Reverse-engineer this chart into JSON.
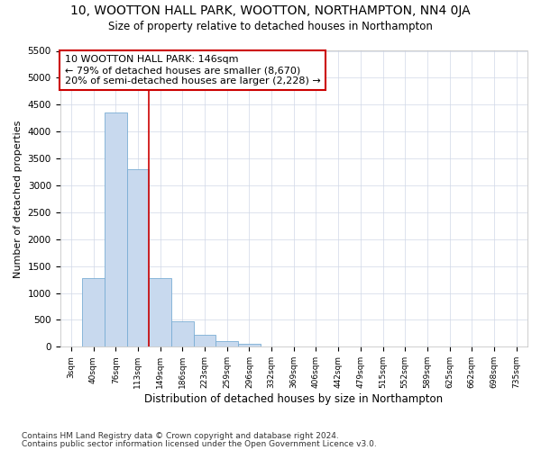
{
  "title1": "10, WOOTTON HALL PARK, WOOTTON, NORTHAMPTON, NN4 0JA",
  "title2": "Size of property relative to detached houses in Northampton",
  "xlabel": "Distribution of detached houses by size in Northampton",
  "ylabel": "Number of detached properties",
  "footnote1": "Contains HM Land Registry data © Crown copyright and database right 2024.",
  "footnote2": "Contains public sector information licensed under the Open Government Licence v3.0.",
  "bar_labels": [
    "3sqm",
    "40sqm",
    "76sqm",
    "113sqm",
    "149sqm",
    "186sqm",
    "223sqm",
    "259sqm",
    "296sqm",
    "332sqm",
    "369sqm",
    "406sqm",
    "442sqm",
    "479sqm",
    "515sqm",
    "552sqm",
    "589sqm",
    "625sqm",
    "662sqm",
    "698sqm",
    "735sqm"
  ],
  "bar_values": [
    0,
    1280,
    4350,
    3300,
    1280,
    480,
    230,
    100,
    60,
    0,
    0,
    0,
    0,
    0,
    0,
    0,
    0,
    0,
    0,
    0,
    0
  ],
  "bar_color": "#c8d9ee",
  "bar_edge_color": "#7aadd4",
  "property_line_label": "10 WOOTTON HALL PARK: 146sqm",
  "annotation_line1": "← 79% of detached houses are smaller (8,670)",
  "annotation_line2": "20% of semi-detached houses are larger (2,228) →",
  "annotation_box_color": "#ffffff",
  "annotation_box_edge_color": "#cc0000",
  "vline_color": "#cc0000",
  "vline_x_index": 4.0,
  "ylim_max": 5500,
  "yticks": [
    0,
    500,
    1000,
    1500,
    2000,
    2500,
    3000,
    3500,
    4000,
    4500,
    5000,
    5500
  ],
  "background_color": "#ffffff",
  "grid_color": "#d0d8e8"
}
